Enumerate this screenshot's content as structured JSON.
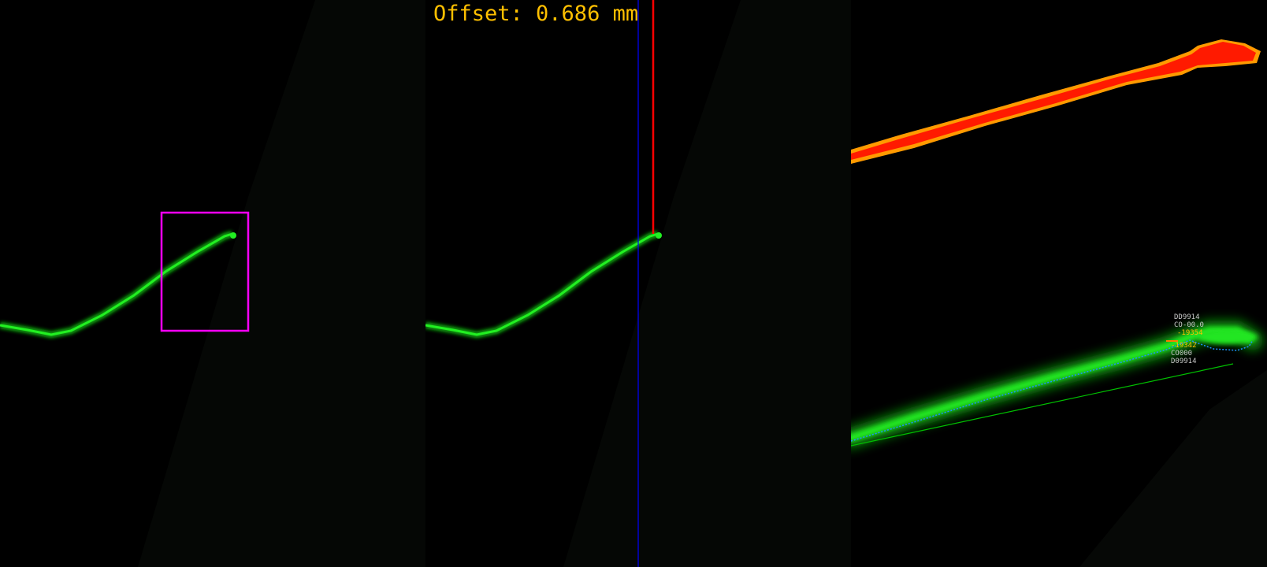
{
  "overlay": {
    "offset_label": "Offset: 0.686 mm",
    "offset_value_mm": 0.686
  },
  "panels": [
    {
      "name": "raw-with-roi",
      "roi_color": "#ff00ff"
    },
    {
      "name": "reference-lines",
      "vertical_line_1_color": "#0000ff",
      "vertical_line_2_color": "#ff0000"
    },
    {
      "name": "zoomed-analysis"
    }
  ],
  "zoom_labels": {
    "l1": "DD9914",
    "l2": "CO-00.0",
    "l3": "-19354",
    "l4": "-19342",
    "l5": "CO000",
    "l6": "D09914"
  },
  "colors": {
    "laser_green": "#19e619",
    "hot_red": "#ff1a00",
    "hot_orange": "#ff9a00",
    "label_grey": "#c8c8c8",
    "label_yellow": "#ffc000",
    "fit_line": "#00c000",
    "edge_trace": "#1e90ff"
  }
}
